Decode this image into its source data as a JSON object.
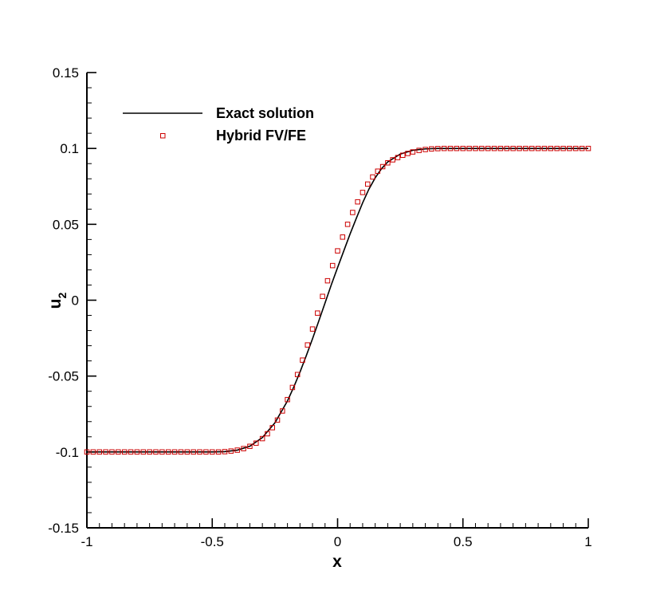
{
  "chart_data": {
    "type": "line",
    "title": "",
    "xlabel": "x",
    "ylabel_main": "u",
    "ylabel_subscript": "2",
    "xlim": [
      -1,
      1
    ],
    "ylim": [
      -0.15,
      0.15
    ],
    "x_ticks": [
      -1,
      -0.5,
      0,
      0.5,
      1
    ],
    "x_tick_labels": [
      "-1",
      "-0.5",
      "0",
      "0.5",
      "1"
    ],
    "y_ticks": [
      -0.15,
      -0.1,
      -0.05,
      0,
      0.05,
      0.1,
      0.15
    ],
    "y_tick_labels": [
      "-0.15",
      "-0.1",
      "-0.05",
      "0",
      "0.05",
      "0.1",
      "0.15"
    ],
    "grid": false,
    "legend_position": "top-left",
    "series": [
      {
        "name": "Exact solution",
        "style": "line",
        "color": "#000000",
        "x": [
          -1,
          -0.95,
          -0.9,
          -0.85,
          -0.8,
          -0.75,
          -0.7,
          -0.65,
          -0.6,
          -0.55,
          -0.5,
          -0.45,
          -0.4,
          -0.35,
          -0.3,
          -0.25,
          -0.2,
          -0.175,
          -0.15,
          -0.125,
          -0.1,
          -0.075,
          -0.05,
          -0.025,
          0,
          0.025,
          0.05,
          0.075,
          0.1,
          0.125,
          0.15,
          0.175,
          0.2,
          0.25,
          0.3,
          0.35,
          0.4,
          0.45,
          0.5,
          0.55,
          0.6,
          0.65,
          0.7,
          0.75,
          0.8,
          0.85,
          0.9,
          0.95,
          1
        ],
        "y": [
          -0.1,
          -0.1,
          -0.1,
          -0.1,
          -0.1,
          -0.1,
          -0.1,
          -0.1,
          -0.1,
          -0.1,
          -0.1,
          -0.0998,
          -0.0988,
          -0.0962,
          -0.0905,
          -0.0808,
          -0.0664,
          -0.0573,
          -0.0474,
          -0.0366,
          -0.0254,
          -0.0137,
          -0.0018,
          0.0102,
          0.0215,
          0.0326,
          0.0437,
          0.0541,
          0.0642,
          0.0732,
          0.0806,
          0.0866,
          0.0911,
          0.0963,
          0.0988,
          0.0997,
          0.1,
          0.1,
          0.1,
          0.1,
          0.1,
          0.1,
          0.1,
          0.1,
          0.1,
          0.1,
          0.1,
          0.1,
          0.1
        ]
      },
      {
        "name": "Hybrid FV/FE",
        "style": "markers",
        "marker": "square",
        "color": "#cc0000",
        "x": [
          -1,
          -0.975,
          -0.95,
          -0.925,
          -0.9,
          -0.875,
          -0.85,
          -0.825,
          -0.8,
          -0.775,
          -0.75,
          -0.725,
          -0.7,
          -0.675,
          -0.65,
          -0.625,
          -0.6,
          -0.575,
          -0.55,
          -0.525,
          -0.5,
          -0.475,
          -0.45,
          -0.425,
          -0.4,
          -0.375,
          -0.35,
          -0.325,
          -0.3,
          -0.28,
          -0.26,
          -0.24,
          -0.22,
          -0.2,
          -0.18,
          -0.16,
          -0.14,
          -0.12,
          -0.1,
          -0.08,
          -0.06,
          -0.04,
          -0.02,
          0,
          0.02,
          0.04,
          0.06,
          0.08,
          0.1,
          0.12,
          0.14,
          0.16,
          0.18,
          0.2,
          0.22,
          0.24,
          0.26,
          0.28,
          0.3,
          0.325,
          0.35,
          0.375,
          0.4,
          0.425,
          0.45,
          0.475,
          0.5,
          0.525,
          0.55,
          0.575,
          0.6,
          0.625,
          0.65,
          0.675,
          0.7,
          0.725,
          0.75,
          0.775,
          0.8,
          0.825,
          0.85,
          0.875,
          0.9,
          0.925,
          0.95,
          0.975,
          1
        ],
        "y": [
          -0.1,
          -0.1,
          -0.1,
          -0.1,
          -0.1,
          -0.1,
          -0.1,
          -0.1,
          -0.1,
          -0.1,
          -0.1,
          -0.1,
          -0.1,
          -0.1,
          -0.1,
          -0.1,
          -0.1,
          -0.1,
          -0.1,
          -0.1,
          -0.1,
          -0.1,
          -0.0998,
          -0.0994,
          -0.0988,
          -0.0978,
          -0.0963,
          -0.0942,
          -0.0912,
          -0.088,
          -0.084,
          -0.079,
          -0.073,
          -0.0655,
          -0.0575,
          -0.049,
          -0.0395,
          -0.0295,
          -0.019,
          -0.0085,
          0.0025,
          0.0128,
          0.0228,
          0.0325,
          0.0416,
          0.05,
          0.0578,
          0.0648,
          0.071,
          0.0765,
          0.0812,
          0.085,
          0.088,
          0.0905,
          0.0925,
          0.094,
          0.0955,
          0.0967,
          0.0977,
          0.0987,
          0.0993,
          0.0997,
          0.0999,
          0.1,
          0.1,
          0.1,
          0.1,
          0.1,
          0.1,
          0.1,
          0.1,
          0.1,
          0.1,
          0.1,
          0.1,
          0.1,
          0.1,
          0.1,
          0.1,
          0.1,
          0.1,
          0.1,
          0.1,
          0.1,
          0.1,
          0.1,
          0.1
        ]
      }
    ]
  }
}
